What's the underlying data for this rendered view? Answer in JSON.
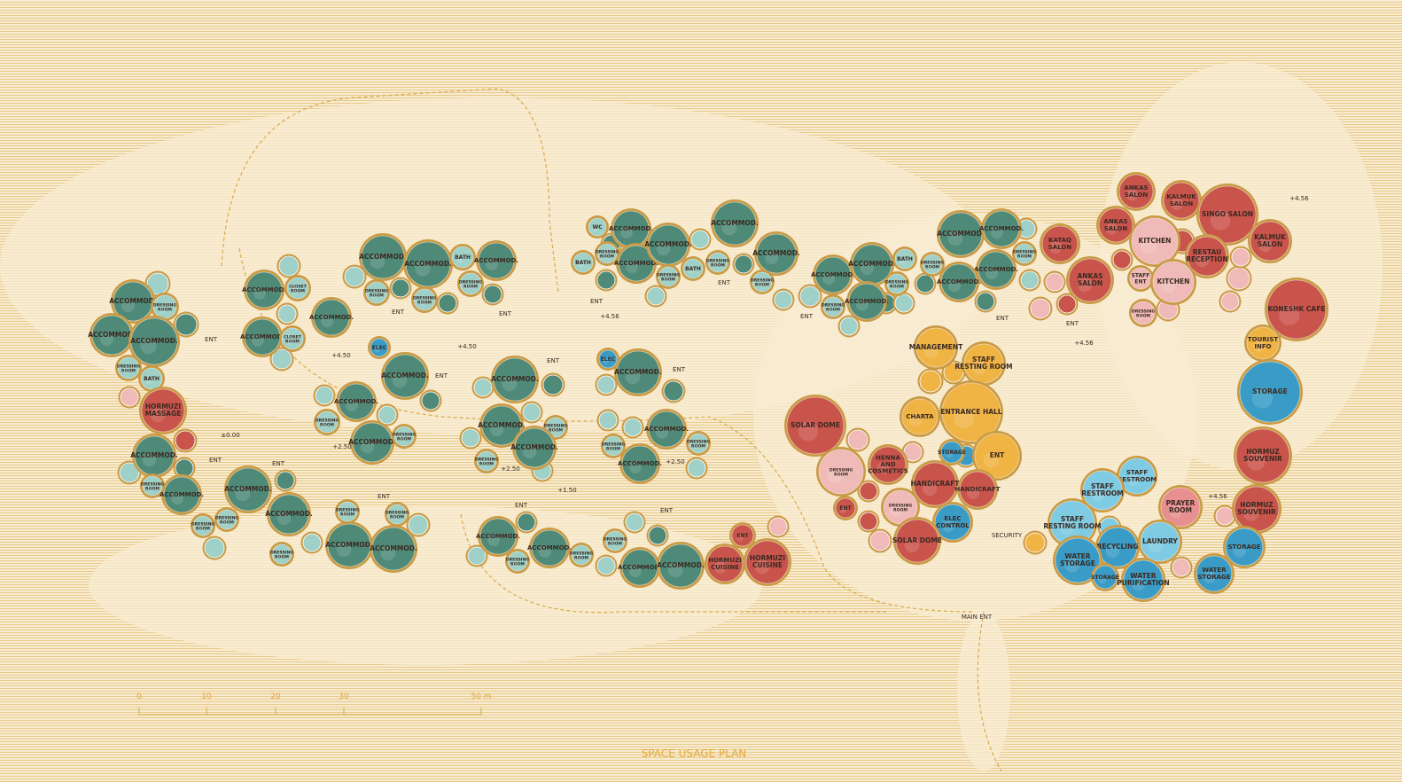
{
  "title": "SPACE USAGE PLAN",
  "colors": {
    "accommodation": "#4f8a78",
    "service_light": "#9fd1c8",
    "commercial": "#c9544c",
    "commercial_light": "#efbab8",
    "administration": "#f0b445",
    "utility": "#3a9cc6",
    "utility_light": "#7fcbe3",
    "prayer": "#e89090",
    "wall": "#c99a45",
    "ground": "#f7ebd0"
  },
  "rooms": [
    {
      "label": "ACCOMMOD.",
      "type": "accommodation"
    },
    {
      "label": "DRESSING\nROOM",
      "type": "service_light"
    },
    {
      "label": "ACCOMMOD.",
      "type": "accommodation"
    },
    {
      "label": "ACCOMMOD.",
      "type": "accommodation"
    },
    {
      "label": "DRESSING\nROOM",
      "type": "service_light"
    },
    {
      "label": "BATH",
      "type": "service_light"
    },
    {
      "label": "HORMUZI\nMASSAGE",
      "type": "commercial"
    },
    {
      "label": "ACCOMMOD.",
      "type": "accommodation"
    },
    {
      "label": "DRESSING\nROOM",
      "type": "service_light"
    },
    {
      "label": "ACCOMMOD.",
      "type": "accommodation"
    },
    {
      "label": "DRESSING\nROOM",
      "type": "service_light"
    },
    {
      "label": "ACCOMMOD.",
      "type": "accommodation"
    },
    {
      "label": "DRESSING\nROOM",
      "type": "service_light"
    },
    {
      "label": "ACCOMMOD.",
      "type": "accommodation"
    },
    {
      "label": "DRESSING\nROOM",
      "type": "service_light"
    },
    {
      "label": "DRESSING\nROOM",
      "type": "service_light"
    },
    {
      "label": "DRESSING\nROOM",
      "type": "service_light"
    },
    {
      "label": "ACCOMMOD.",
      "type": "accommodation"
    },
    {
      "label": "ACCOMMOD.",
      "type": "accommodation"
    },
    {
      "label": "ACCOMMOD.",
      "type": "accommodation"
    },
    {
      "label": "CLOSET\nROOM",
      "type": "service_light"
    },
    {
      "label": "ACCOMMOD.",
      "type": "accommodation"
    },
    {
      "label": "CLOSET\nROOM",
      "type": "service_light"
    },
    {
      "label": "ACCOMMOD.",
      "type": "accommodation"
    },
    {
      "label": "ACCOMMOD.",
      "type": "accommodation"
    },
    {
      "label": "DRESSING\nROOM",
      "type": "service_light"
    },
    {
      "label": "ACCOMMOD.",
      "type": "accommodation"
    },
    {
      "label": "DRESSING\nROOM",
      "type": "service_light"
    },
    {
      "label": "BATH",
      "type": "service_light"
    },
    {
      "label": "DRESSING\nROOM",
      "type": "service_light"
    },
    {
      "label": "ACCOMMOD.",
      "type": "accommodation"
    },
    {
      "label": "ELEC",
      "type": "utility"
    },
    {
      "label": "ACCOMMOD.",
      "type": "accommodation"
    },
    {
      "label": "ACCOMMOD.",
      "type": "accommodation"
    },
    {
      "label": "DRESSING\nROOM",
      "type": "service_light"
    },
    {
      "label": "ACCOMMOD.",
      "type": "accommodation"
    },
    {
      "label": "DRESSING\nROOM",
      "type": "service_light"
    },
    {
      "label": "ACCOMMOD.",
      "type": "accommodation"
    },
    {
      "label": "ACCOMMOD.",
      "type": "accommodation"
    },
    {
      "label": "DRESSING\nROOM",
      "type": "service_light"
    },
    {
      "label": "DRESSING\nROOM",
      "type": "service_light"
    },
    {
      "label": "ACCOMMOD.",
      "type": "accommodation"
    },
    {
      "label": "ELEC",
      "type": "utility"
    },
    {
      "label": "ACCOMMOD.",
      "type": "accommodation"
    },
    {
      "label": "ACCOMMOD.",
      "type": "accommodation"
    },
    {
      "label": "DRESSING\nROOM",
      "type": "service_light"
    },
    {
      "label": "DRESSING\nROOM",
      "type": "service_light"
    },
    {
      "label": "ACCOMMOD.",
      "type": "accommodation"
    },
    {
      "label": "ACCOMMOD.",
      "type": "accommodation"
    },
    {
      "label": "DRESSING\nROOM",
      "type": "service_light"
    },
    {
      "label": "ACCOMMOD.",
      "type": "accommodation"
    },
    {
      "label": "DRESSING\nROOM",
      "type": "service_light"
    },
    {
      "label": "DRESSING\nROOM",
      "type": "service_light"
    },
    {
      "label": "ACCOMMOD.",
      "type": "accommodation"
    },
    {
      "label": "ACCOMMOD.",
      "type": "accommodation"
    },
    {
      "label": "ENT",
      "type": "commercial"
    },
    {
      "label": "HORMUZI\nCUISINE",
      "type": "commercial"
    },
    {
      "label": "HORMUZI\nCUISINE",
      "type": "commercial"
    },
    {
      "label": "WC",
      "type": "service_light"
    },
    {
      "label": "ACCOMMOD.",
      "type": "accommodation"
    },
    {
      "label": "BATH",
      "type": "service_light"
    },
    {
      "label": "DRESSING\nROOM",
      "type": "service_light"
    },
    {
      "label": "ACCOMMOD.",
      "type": "accommodation"
    },
    {
      "label": "ACCOMMOD.",
      "type": "accommodation"
    },
    {
      "label": "DRESSING\nROOM",
      "type": "service_light"
    },
    {
      "label": "BATH",
      "type": "service_light"
    },
    {
      "label": "DRESSING\nROOM",
      "type": "service_light"
    },
    {
      "label": "ACCOMMOD.",
      "type": "accommodation"
    },
    {
      "label": "ACCOMMOD.",
      "type": "accommodation"
    },
    {
      "label": "DRESSING\nROOM",
      "type": "service_light"
    },
    {
      "label": "ACCOMMOD.",
      "type": "accommodation"
    },
    {
      "label": "DRESSING\nROOM",
      "type": "service_light"
    },
    {
      "label": "ACCOMMOD.",
      "type": "accommodation"
    },
    {
      "label": "ACCOMMOD.",
      "type": "accommodation"
    },
    {
      "label": "BATH",
      "type": "service_light"
    },
    {
      "label": "DRESSING\nROOM",
      "type": "service_light"
    },
    {
      "label": "DRESSING\nROOM",
      "type": "service_light"
    },
    {
      "label": "ACCOMMOD.",
      "type": "accommodation"
    },
    {
      "label": "ACCOMMOD.",
      "type": "accommodation"
    },
    {
      "label": "DRESSING\nROOM",
      "type": "service_light"
    },
    {
      "label": "ACCOMMOD.",
      "type": "accommodation"
    },
    {
      "label": "ACCOMMOD.",
      "type": "accommodation"
    },
    {
      "label": "ANKAS\nSALON",
      "type": "commercial"
    },
    {
      "label": "KALMUK\nSALON",
      "type": "commercial"
    },
    {
      "label": "SINGO SALON",
      "type": "commercial"
    },
    {
      "label": "ANKAS\nSALON",
      "type": "commercial"
    },
    {
      "label": "KATAQ\nSALON",
      "type": "commercial"
    },
    {
      "label": "KITCHEN",
      "type": "commercial_light"
    },
    {
      "label": "RESTAU\nRECEPTION",
      "type": "commercial"
    },
    {
      "label": "KALMUK\nSALON",
      "type": "commercial"
    },
    {
      "label": "ANKAS\nSALON",
      "type": "commercial"
    },
    {
      "label": "STAFF\nENT",
      "type": "commercial_light"
    },
    {
      "label": "KITCHEN",
      "type": "commercial_light"
    },
    {
      "label": "DRESSING\nROOM",
      "type": "commercial_light"
    },
    {
      "label": "KONESHK CAFE",
      "type": "commercial"
    },
    {
      "label": "TOURIST\nINFO",
      "type": "administration"
    },
    {
      "label": "STORAGE",
      "type": "utility"
    },
    {
      "label": "HORMUZ\nSOUVENIR",
      "type": "commercial"
    },
    {
      "label": "HORMUZ\nSOUVENIR",
      "type": "commercial"
    },
    {
      "label": "STORAGE",
      "type": "utility"
    },
    {
      "label": "WATER\nSTORAGE",
      "type": "utility"
    },
    {
      "label": "PRAYER\nROOM",
      "type": "prayer"
    },
    {
      "label": "LAUNDRY",
      "type": "utility_light"
    },
    {
      "label": "STAFF\nRESTROOM",
      "type": "utility_light"
    },
    {
      "label": "STAFF\nRESTROOM",
      "type": "utility_light"
    },
    {
      "label": "STAFF\nRESTING ROOM",
      "type": "utility_light"
    },
    {
      "label": "RECYCLING",
      "type": "utility"
    },
    {
      "label": "WATER\nSTORAGE",
      "type": "utility"
    },
    {
      "label": "STORAGE",
      "type": "utility"
    },
    {
      "label": "WATER\nPURIFICATION",
      "type": "utility"
    },
    {
      "label": "MANAGEMENT",
      "type": "administration"
    },
    {
      "label": "STAFF\nRESTING ROOM",
      "type": "administration"
    },
    {
      "label": "ENTRANCE HALL",
      "type": "administration"
    },
    {
      "label": "CHARTA",
      "type": "administration"
    },
    {
      "label": "ENT",
      "type": "administration"
    },
    {
      "label": "STORAGE",
      "type": "utility"
    },
    {
      "label": "SOLAR DOME",
      "type": "commercial"
    },
    {
      "label": "DRESSING\nROOM",
      "type": "commercial_light"
    },
    {
      "label": "HENNA\nAND\nCOSMETICS",
      "type": "commercial"
    },
    {
      "label": "HANDICRAFT",
      "type": "commercial"
    },
    {
      "label": "HANDICRAFT",
      "type": "commercial"
    },
    {
      "label": "ENT",
      "type": "commercial"
    },
    {
      "label": "DRESSING\nROOM",
      "type": "commercial_light"
    },
    {
      "label": "ELEC\nCONTROL",
      "type": "utility"
    },
    {
      "label": "SOLAR DOME",
      "type": "commercial"
    }
  ],
  "annotations": [
    "+4.56",
    "+4.56",
    "+4.50",
    "+4.50",
    "+4.56",
    "+4.56",
    "±0.00",
    "+2.50",
    "+2.50",
    "+2.50",
    "+1.50",
    "ENT",
    "ENT",
    "ENT",
    "ENT",
    "ENT",
    "ENT",
    "ENT",
    "ENT",
    "ENT",
    "ENT",
    "ENT",
    "ENT",
    "ENT",
    "ENT",
    "ENT",
    "ENT",
    "MAIN ENT",
    "SECURITY"
  ],
  "scale_bar": {
    "labels": [
      "0",
      "10",
      "20",
      "30",
      "50 m"
    ]
  }
}
